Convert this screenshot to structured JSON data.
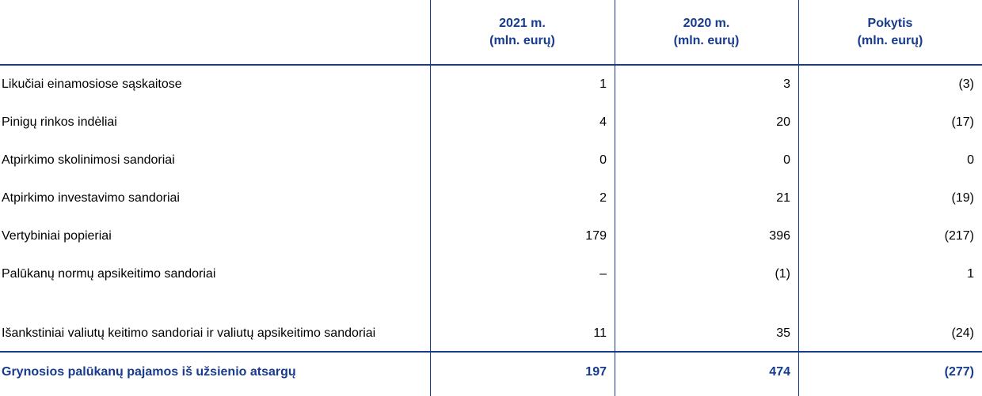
{
  "table": {
    "headers": [
      [
        "2021 m.",
        "(mln. eurų)"
      ],
      [
        "2020 m.",
        "(mln. eurų)"
      ],
      [
        "Pokytis",
        "(mln. eurų)"
      ]
    ],
    "rows": [
      [
        "Likučiai einamosiose sąskaitose",
        "1",
        "3",
        "(3)"
      ],
      [
        "Pinigų rinkos indėliai",
        "4",
        "20",
        "(17)"
      ],
      [
        "Atpirkimo skolinimosi sandoriai",
        "0",
        "0",
        "0"
      ],
      [
        "Atpirkimo investavimo sandoriai",
        "2",
        "21",
        "(19)"
      ],
      [
        "Vertybiniai popieriai",
        "179",
        "396",
        "(217)"
      ],
      [
        "Palūkanų normų apsikeitimo sandoriai",
        "–",
        "(1)",
        "1"
      ],
      [
        "Išankstiniai valiutų keitimo sandoriai ir valiutų apsikeitimo sandoriai",
        "11",
        "35",
        "(24)"
      ]
    ],
    "total": [
      "Grynosios palūkanų pajamos iš užsienio atsargų",
      "197",
      "474",
      "(277)"
    ]
  }
}
